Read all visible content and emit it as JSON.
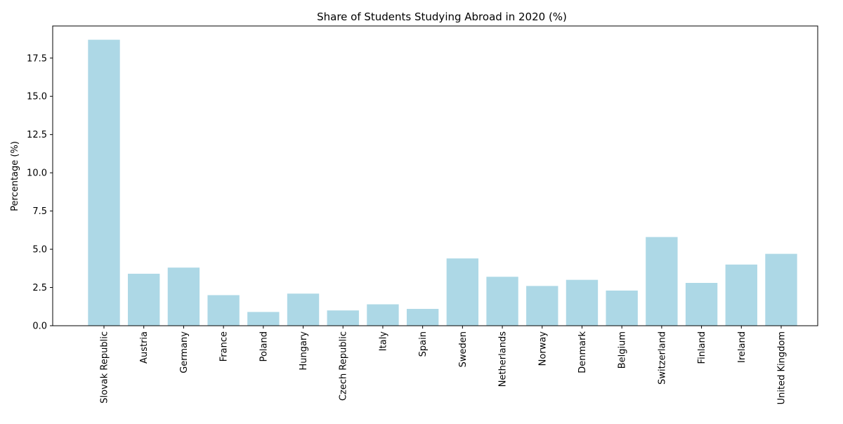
{
  "chart_data": {
    "type": "bar",
    "title": "Share of Students Studying Abroad in 2020 (%)",
    "xlabel": "",
    "ylabel": "Percentage (%)",
    "categories": [
      "Slovak Republic",
      "Austria",
      "Germany",
      "France",
      "Poland",
      "Hungary",
      "Czech Republic",
      "Italy",
      "Spain",
      "Sweden",
      "Netherlands",
      "Norway",
      "Denmark",
      "Belgium",
      "Switzerland",
      "Finland",
      "Ireland",
      "United Kingdom"
    ],
    "values": [
      18.7,
      3.4,
      3.8,
      2.0,
      0.9,
      2.1,
      1.0,
      1.4,
      1.1,
      4.4,
      3.2,
      2.6,
      3.0,
      2.3,
      5.8,
      2.8,
      4.0,
      4.7
    ],
    "ylim": [
      0,
      19.6
    ],
    "yticks": [
      "0.0",
      "2.5",
      "5.0",
      "7.5",
      "10.0",
      "12.5",
      "15.0",
      "17.5"
    ],
    "bar_color": "#add8e6",
    "grid": false,
    "legend": "none"
  }
}
